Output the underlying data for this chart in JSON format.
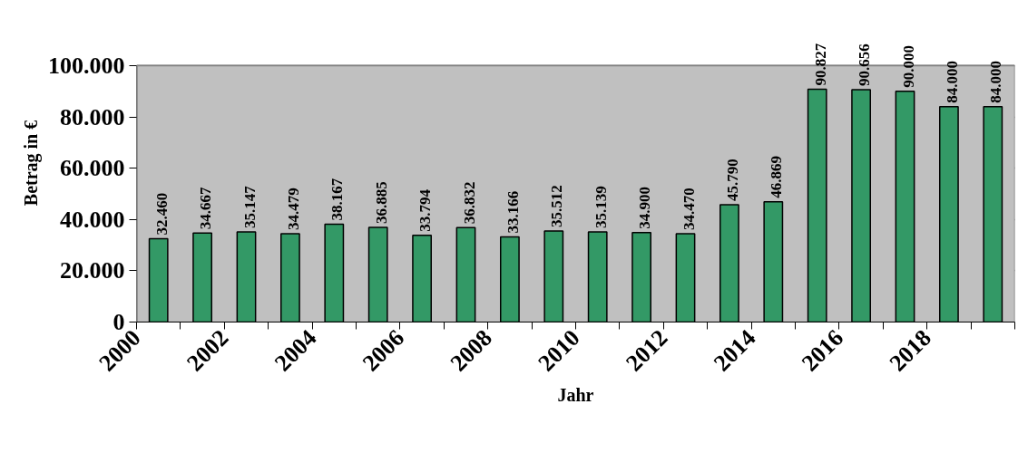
{
  "chart_data": {
    "type": "bar",
    "xlabel": "Jahr",
    "ylabel": "Betrag in €",
    "categories": [
      "2000",
      null,
      "2002",
      null,
      "2004",
      null,
      "2006",
      null,
      "2008",
      null,
      "2010",
      null,
      "2012",
      null,
      "2014",
      null,
      "2016",
      null,
      "2018",
      null
    ],
    "series": [
      {
        "color": "#339966",
        "values": [
          32460,
          34667,
          35147,
          34479,
          38167,
          36885,
          33794,
          36832,
          33166,
          35512,
          35139,
          34900,
          34470,
          45790,
          46869,
          90827,
          90656,
          90000,
          84000,
          84000
        ],
        "value_labels": [
          "32.460",
          "34.667",
          "35.147",
          "34.479",
          "38.167",
          "36.885",
          "33.794",
          "36.832",
          "33.166",
          "35.512",
          "35.139",
          "34.900",
          "34.470",
          "45.790",
          "46.869",
          "90.827",
          "90.656",
          "90.000",
          "84.000",
          "84.000"
        ]
      }
    ],
    "ylim": [
      0,
      100000
    ],
    "yticks": [
      {
        "value": 0,
        "label": "0"
      },
      {
        "value": 20000,
        "label": "20.000"
      },
      {
        "value": 40000,
        "label": "40.000"
      },
      {
        "value": 60000,
        "label": "60.000"
      },
      {
        "value": 80000,
        "label": "80.000"
      },
      {
        "value": 100000,
        "label": "100.000"
      }
    ],
    "grid": "y"
  }
}
